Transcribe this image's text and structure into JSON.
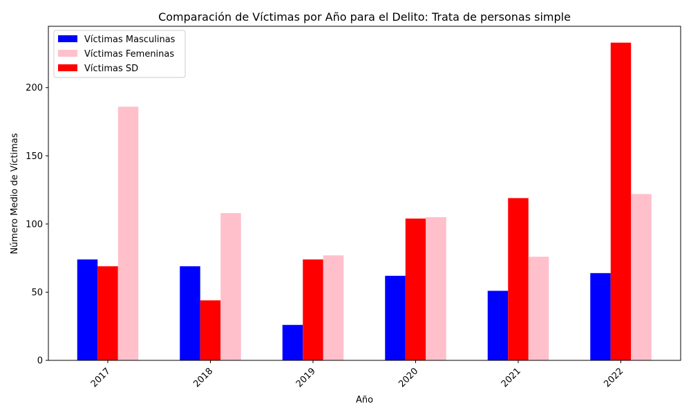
{
  "chart_data": {
    "type": "bar",
    "title": "Comparación de Víctimas por Año para el Delito: Trata de personas simple",
    "xlabel": "Año",
    "ylabel": "Número Medio de Víctimas",
    "categories": [
      "2017",
      "2018",
      "2019",
      "2020",
      "2021",
      "2022"
    ],
    "series": [
      {
        "name": "Víctimas Masculinas",
        "color": "#0000ff",
        "values": [
          74,
          69,
          26,
          62,
          51,
          64
        ]
      },
      {
        "name": "Víctimas Femeninas",
        "color": "#ffc0cb",
        "values": [
          186,
          108,
          77,
          105,
          76,
          122
        ]
      },
      {
        "name": "Víctimas SD",
        "color": "#ff0000",
        "values": [
          69,
          44,
          74,
          104,
          119,
          233
        ]
      }
    ],
    "bar_order": [
      "Víctimas Masculinas",
      "Víctimas SD",
      "Víctimas Femeninas"
    ],
    "ylim": [
      0,
      245
    ],
    "yticks": [
      0,
      50,
      100,
      150,
      200
    ],
    "grid": false,
    "legend_position": "top-left"
  }
}
